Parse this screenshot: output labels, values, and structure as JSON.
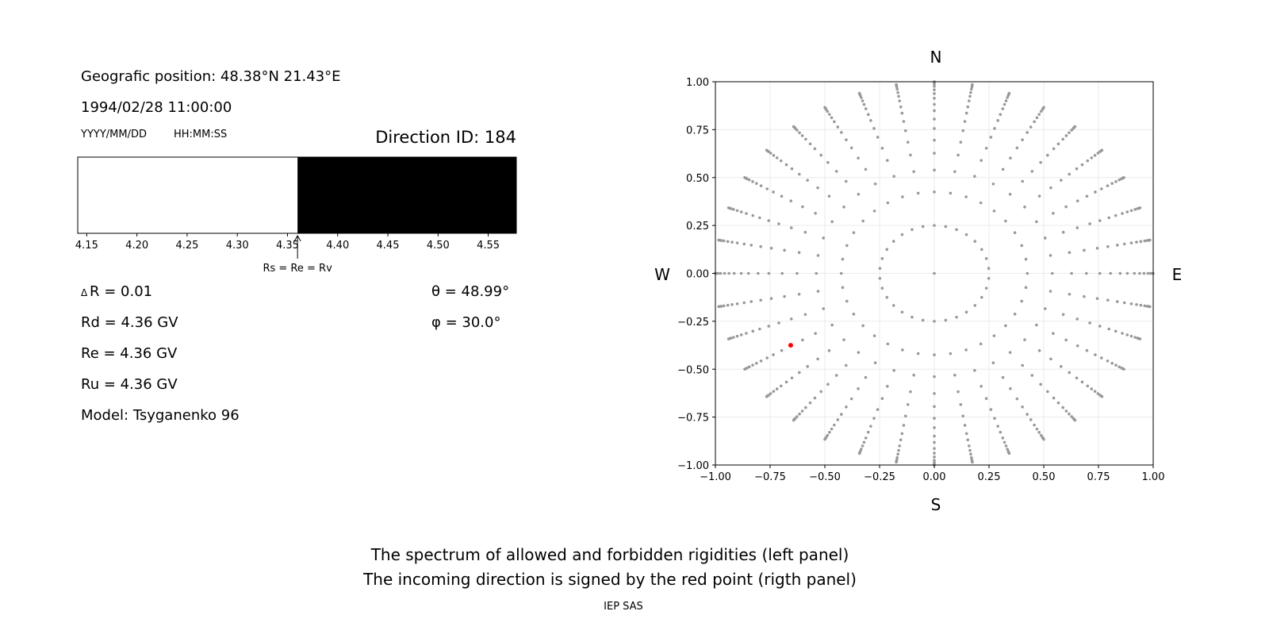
{
  "left_panel": {
    "position": "Geografic position: 48.38°N 21.43°E",
    "datetime": "1994/02/28 11:00:00",
    "date_format": "YYYY/MM/DD",
    "time_format": "HH:MM:SS",
    "direction_id": "Direction ID: 184",
    "delta_r": "R = 0.01",
    "delta_symbol": "Δ",
    "rd": "Rd = 4.36 GV",
    "re": "Re = 4.36 GV",
    "ru": "Ru = 4.36 GV",
    "model": "Model: Tsyganenko 96",
    "theta": "θ = 48.99°",
    "phi": "φ = 30.0°"
  },
  "compass": {
    "n": "N",
    "s": "S",
    "w": "W",
    "e": "E"
  },
  "footer": {
    "line1": "The spectrum of allowed and forbidden rigidities (left panel)",
    "line2": "The incoming direction is signed by the red point (rigth panel)",
    "credit": "IEP SAS"
  },
  "chart_data": [
    {
      "type": "bar",
      "xlim": [
        4.141,
        4.578
      ],
      "xticks": [
        "4.15",
        "4.20",
        "4.25",
        "4.30",
        "4.35",
        "4.40",
        "4.45",
        "4.50",
        "4.55"
      ],
      "segments": [
        {
          "from": 4.141,
          "to": 4.36,
          "color": "#ffffff"
        },
        {
          "from": 4.36,
          "to": 4.578,
          "color": "#000000"
        }
      ],
      "annotation": {
        "x": 4.36,
        "text": "Rs = Re = Rv"
      },
      "grid": false
    },
    {
      "type": "scatter",
      "xlim": [
        -1,
        1
      ],
      "ylim": [
        -1,
        1
      ],
      "xticks": [
        "−1.00",
        "−0.75",
        "−0.50",
        "−0.25",
        "0.00",
        "0.25",
        "0.50",
        "0.75",
        "1.00"
      ],
      "yticks": [
        "1.00",
        "0.75",
        "0.50",
        "0.25",
        "0.00",
        "−0.25",
        "−0.50",
        "−0.75",
        "−1.00"
      ],
      "grid": true,
      "point_color": "#999999",
      "center_point": [
        0,
        0
      ],
      "ring": {
        "r": 0.25,
        "count": 30
      },
      "ray_angle_step_deg": 10,
      "ray_radii": [
        0.425,
        0.539,
        0.627,
        0.695,
        0.756,
        0.805,
        0.849,
        0.882,
        0.914,
        0.938,
        0.958,
        0.976,
        0.988,
        0.995,
        1.0
      ],
      "highlight": {
        "x": -0.656,
        "y": -0.375,
        "color": "#ff0000"
      }
    }
  ]
}
